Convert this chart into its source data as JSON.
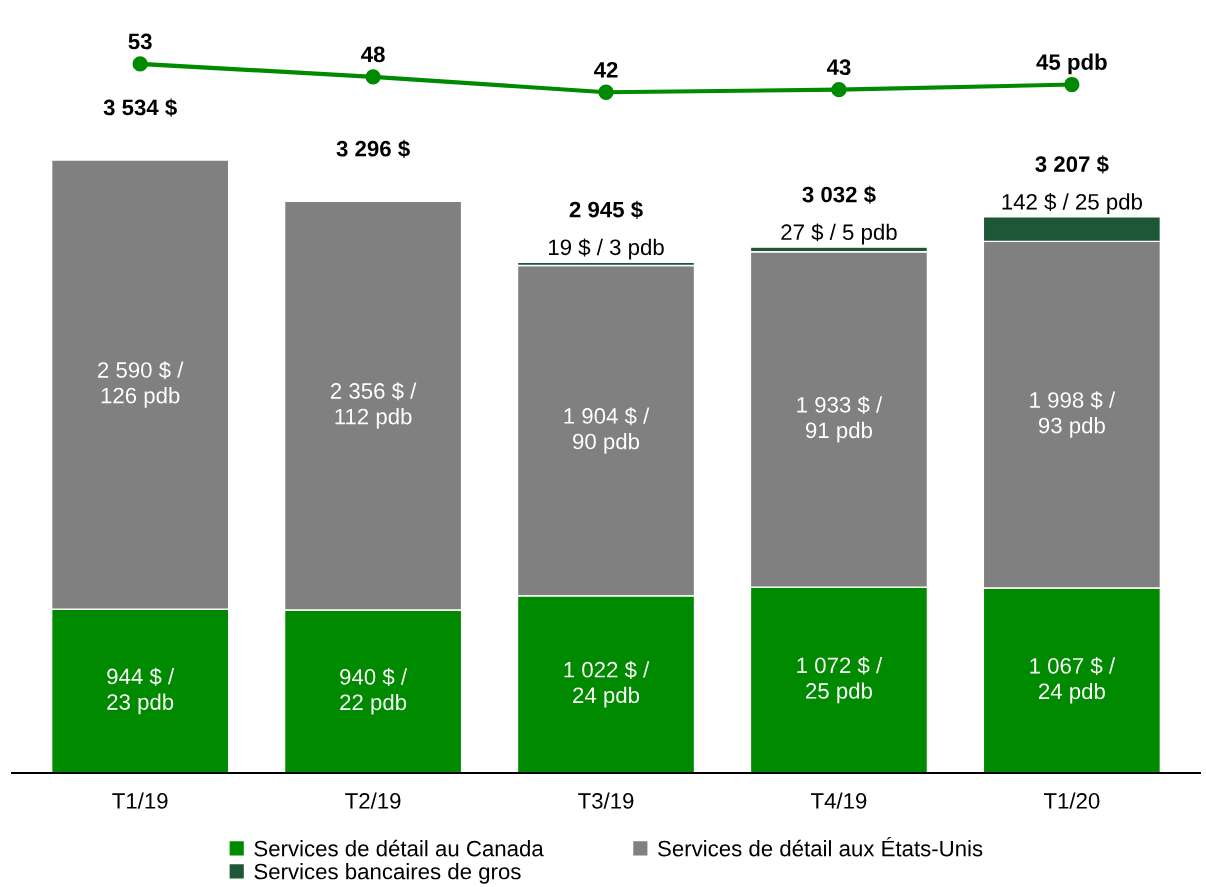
{
  "chart_data": [
    {
      "type": "line",
      "categories": [
        null,
        null,
        null,
        null,
        null
      ],
      "tick_labels": false,
      "grid": false,
      "marker": "circle",
      "series": [
        {
          "color": "#008a00",
          "values": [
            53,
            48,
            42,
            43,
            45
          ],
          "value_labels": [
            "53",
            "48",
            "42",
            "43",
            "45 pdb"
          ]
        }
      ]
    },
    {
      "type": "bar",
      "stacked": true,
      "categories": [
        "T1/19",
        "T2/19",
        "T3/19",
        "T4/19",
        "T1/20"
      ],
      "series": [
        {
          "name": "Services de détail au Canada",
          "color": "#008a00",
          "values": [
            944,
            940,
            1022,
            1072,
            1067
          ],
          "value_labels": [
            "944 $ /\n23 pdb",
            "940 $ /\n22 pdb",
            "1 022 $ /\n24 pdb",
            "1 072 $ /\n25 pdb",
            "1 067 $ /\n24 pdb"
          ]
        },
        {
          "name": "Services de détail aux États-Unis",
          "color": "#808080",
          "values": [
            2590,
            2356,
            1904,
            1933,
            1998
          ],
          "value_labels": [
            "2 590 $ /\n126 pdb",
            "2 356 $ /\n112 pdb",
            "1 904 $ /\n90 pdb",
            "1 933 $ /\n91 pdb",
            "1 998 $ /\n93 pdb"
          ]
        },
        {
          "name": "Services bancaires de gros",
          "color": "#1e5638",
          "values": [
            null,
            null,
            19,
            27,
            142
          ],
          "value_labels": [
            null,
            null,
            "19 $ / 3 pdb",
            "27 $ / 5 pdb",
            "142 $ / 25 pdb"
          ]
        }
      ],
      "totals": [
        "3 534 $",
        "3 296 $",
        "2 945 $",
        "3 032 $",
        "3 207 $"
      ],
      "tick_labels": "x",
      "grid": false,
      "legend": "bottom"
    }
  ]
}
